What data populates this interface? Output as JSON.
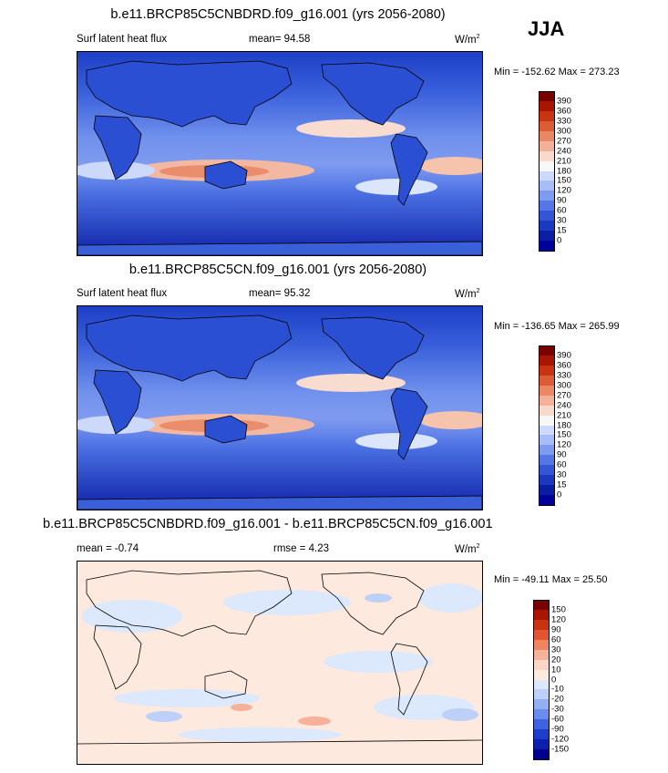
{
  "season": "JJA",
  "panels": [
    {
      "title": "b.e11.BRCP85C5CNBDRD.f09_g16.001 (yrs 2056-2080)",
      "left": "Surf latent heat flux",
      "center": "mean=  94.58",
      "units": "W/m",
      "units_sup": "2",
      "minmax": "Min = -152.62 Max = 273.23",
      "colorbar": {
        "labels": [
          "390",
          "360",
          "330",
          "300",
          "270",
          "240",
          "210",
          "180",
          "150",
          "120",
          "90",
          "60",
          "30",
          "15",
          "0"
        ],
        "colors": [
          "#7a0000",
          "#a81500",
          "#c83410",
          "#dc5c36",
          "#ea8765",
          "#f3b199",
          "#f9d9cc",
          "#f7f7f7",
          "#cdd9fb",
          "#a8bdf7",
          "#7f9bf0",
          "#5577e5",
          "#3256d6",
          "#1a38c0",
          "#0a1da3",
          "#00009a"
        ]
      }
    },
    {
      "title": "b.e11.BRCP85C5CN.f09_g16.001 (yrs 2056-2080)",
      "left": "Surf latent heat flux",
      "center": "mean=  95.32",
      "units": "W/m",
      "units_sup": "2",
      "minmax": "Min = -136.65 Max = 265.99",
      "colorbar": {
        "labels": [
          "390",
          "360",
          "330",
          "300",
          "270",
          "240",
          "210",
          "180",
          "150",
          "120",
          "90",
          "60",
          "30",
          "15",
          "0"
        ],
        "colors": [
          "#7a0000",
          "#a81500",
          "#c83410",
          "#dc5c36",
          "#ea8765",
          "#f3b199",
          "#f9d9cc",
          "#f7f7f7",
          "#cdd9fb",
          "#a8bdf7",
          "#7f9bf0",
          "#5577e5",
          "#3256d6",
          "#1a38c0",
          "#0a1da3",
          "#00009a"
        ]
      }
    },
    {
      "title": "b.e11.BRCP85C5CNBDRD.f09_g16.001 - b.e11.BRCP85C5CN.f09_g16.001",
      "left": "mean =  -0.74",
      "center": "rmse =   4.23",
      "units": "W/m",
      "units_sup": "2",
      "minmax": "Min = -49.11 Max =  25.50",
      "colorbar": {
        "labels": [
          "150",
          "120",
          "90",
          "60",
          "30",
          "20",
          "10",
          "0",
          "-10",
          "-20",
          "-30",
          "-60",
          "-90",
          "-120",
          "-150"
        ],
        "colors": [
          "#7a0000",
          "#a81500",
          "#c83410",
          "#e2542f",
          "#ee8560",
          "#f6b19a",
          "#fbd6c6",
          "#fde9dd",
          "#dce8fb",
          "#bcd0f8",
          "#93aff3",
          "#6a8cec",
          "#3f62de",
          "#1d3ecb",
          "#0b20ad",
          "#00008e"
        ]
      }
    }
  ]
}
